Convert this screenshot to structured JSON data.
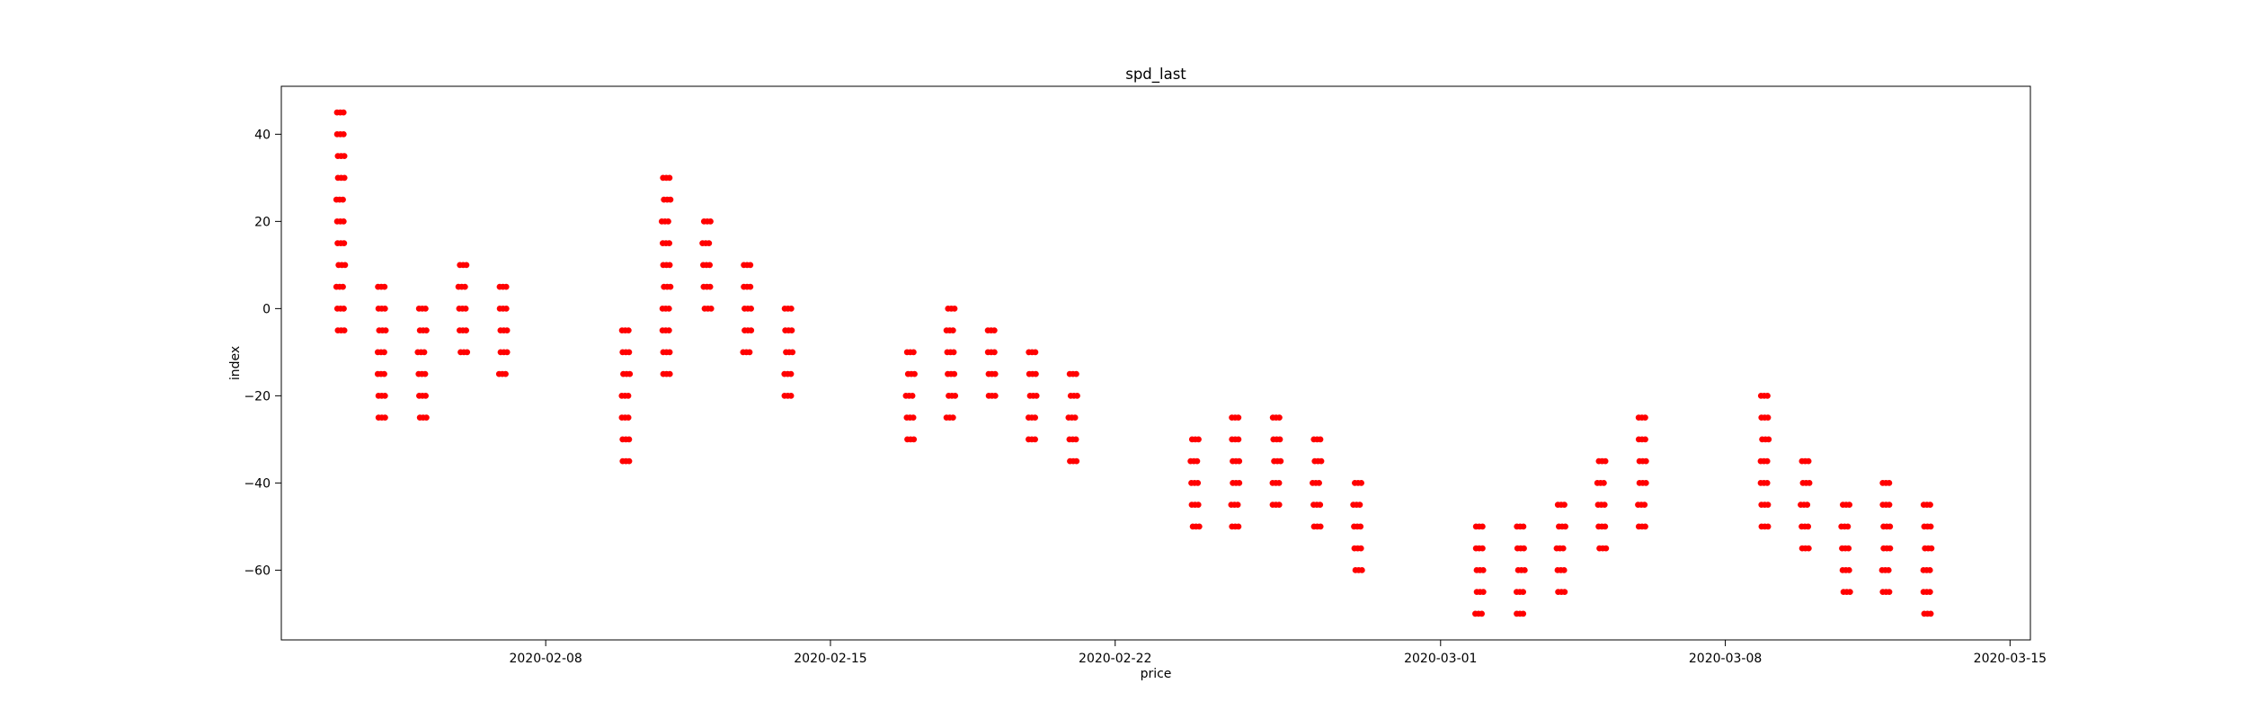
{
  "chart_data": {
    "type": "scatter",
    "title": "spd_last",
    "xlabel": "price",
    "ylabel": "index",
    "xlim": [
      "2020-02-01T12:00",
      "2020-03-15T12:00"
    ],
    "ylim": [
      -76,
      51
    ],
    "x_ticks": [
      "2020-02-08",
      "2020-02-15",
      "2020-02-22",
      "2020-03-01",
      "2020-03-08",
      "2020-03-15"
    ],
    "y_ticks": [
      40,
      20,
      0,
      -20,
      -40,
      -60
    ],
    "grid": false,
    "legend": "none",
    "series": [
      {
        "color": "#ff0000",
        "marker": "circle",
        "groups": [
          {
            "date": "2020-02-03",
            "values": [
              45,
              40,
              35,
              30,
              25,
              20,
              15,
              10,
              5,
              0,
              -5
            ]
          },
          {
            "date": "2020-02-04",
            "values": [
              5,
              0,
              -5,
              -10,
              -15,
              -20,
              -25
            ]
          },
          {
            "date": "2020-02-05",
            "values": [
              0,
              -5,
              -10,
              -15,
              -20,
              -25
            ]
          },
          {
            "date": "2020-02-06",
            "values": [
              10,
              5,
              0,
              -5,
              -10
            ]
          },
          {
            "date": "2020-02-07",
            "values": [
              5,
              0,
              -5,
              -10,
              -15
            ]
          },
          {
            "date": "2020-02-10",
            "values": [
              -5,
              -10,
              -15,
              -20,
              -25,
              -30,
              -35
            ]
          },
          {
            "date": "2020-02-11",
            "values": [
              30,
              25,
              20,
              15,
              10,
              5,
              0,
              -5,
              -10,
              -15
            ]
          },
          {
            "date": "2020-02-12",
            "values": [
              20,
              15,
              10,
              5,
              0
            ]
          },
          {
            "date": "2020-02-13",
            "values": [
              10,
              5,
              0,
              -5,
              -10
            ]
          },
          {
            "date": "2020-02-14",
            "values": [
              0,
              -5,
              -10,
              -15,
              -20
            ]
          },
          {
            "date": "2020-02-17",
            "values": [
              -10,
              -15,
              -20,
              -25,
              -30
            ]
          },
          {
            "date": "2020-02-18",
            "values": [
              0,
              -5,
              -10,
              -15,
              -20,
              -25
            ]
          },
          {
            "date": "2020-02-19",
            "values": [
              -5,
              -10,
              -15,
              -20
            ]
          },
          {
            "date": "2020-02-20",
            "values": [
              -10,
              -15,
              -20,
              -25,
              -30
            ]
          },
          {
            "date": "2020-02-21",
            "values": [
              -15,
              -20,
              -25,
              -30,
              -35
            ]
          },
          {
            "date": "2020-02-24",
            "values": [
              -30,
              -35,
              -40,
              -45,
              -50
            ]
          },
          {
            "date": "2020-02-25",
            "values": [
              -25,
              -30,
              -35,
              -40,
              -45,
              -50
            ]
          },
          {
            "date": "2020-02-26",
            "values": [
              -25,
              -30,
              -35,
              -40,
              -45
            ]
          },
          {
            "date": "2020-02-27",
            "values": [
              -30,
              -35,
              -40,
              -45,
              -50
            ]
          },
          {
            "date": "2020-02-28",
            "values": [
              -40,
              -45,
              -50,
              -55,
              -60
            ]
          },
          {
            "date": "2020-03-02",
            "values": [
              -50,
              -55,
              -60,
              -65,
              -70
            ]
          },
          {
            "date": "2020-03-03",
            "values": [
              -50,
              -55,
              -60,
              -65,
              -70
            ]
          },
          {
            "date": "2020-03-04",
            "values": [
              -45,
              -50,
              -55,
              -60,
              -65
            ]
          },
          {
            "date": "2020-03-05",
            "values": [
              -35,
              -40,
              -45,
              -50,
              -55
            ]
          },
          {
            "date": "2020-03-06",
            "values": [
              -25,
              -30,
              -35,
              -40,
              -45,
              -50
            ]
          },
          {
            "date": "2020-03-09",
            "values": [
              -20,
              -25,
              -30,
              -35,
              -40,
              -45,
              -50
            ]
          },
          {
            "date": "2020-03-10",
            "values": [
              -35,
              -40,
              -45,
              -50,
              -55
            ]
          },
          {
            "date": "2020-03-11",
            "values": [
              -45,
              -50,
              -55,
              -60,
              -65
            ]
          },
          {
            "date": "2020-03-12",
            "values": [
              -40,
              -45,
              -50,
              -55,
              -60,
              -65
            ]
          },
          {
            "date": "2020-03-13",
            "values": [
              -45,
              -50,
              -55,
              -60,
              -65,
              -70
            ]
          }
        ]
      }
    ]
  }
}
